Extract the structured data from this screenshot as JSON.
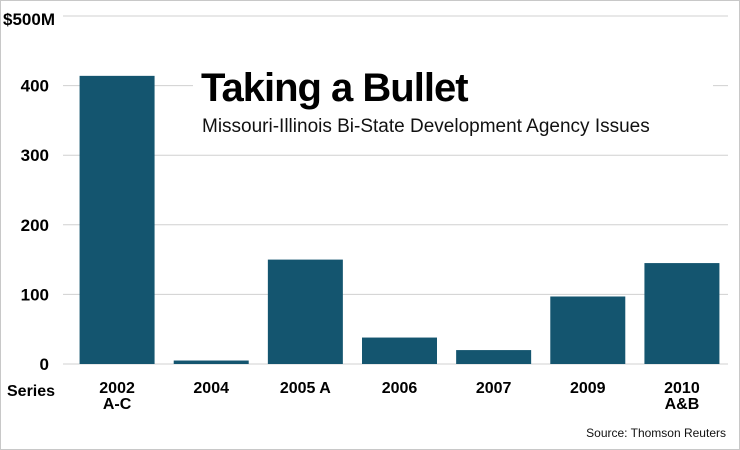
{
  "chart_data": {
    "type": "bar",
    "title": "Taking a Bullet",
    "subtitle": "Missouri-Illinois Bi-State Development Agency Issues",
    "source": "Source: Thomson Reuters",
    "xlabel": "Series",
    "ylabel": "",
    "y_unit_label": "$500M",
    "categories": [
      [
        "2002",
        "A-C"
      ],
      [
        "2004"
      ],
      [
        "2005 A"
      ],
      [
        "2006"
      ],
      [
        "2007"
      ],
      [
        "2009"
      ],
      [
        "2010",
        "A&B"
      ]
    ],
    "values": [
      414,
      5,
      150,
      38,
      20,
      97,
      145
    ],
    "ylim": [
      0,
      500
    ],
    "yticks": [
      0,
      100,
      200,
      300,
      400
    ],
    "ytick_labels": [
      "0",
      "100",
      "200",
      "300",
      "400"
    ],
    "grid": true,
    "bar_color": "#14556f",
    "grid_color": "#d0d0d0"
  }
}
